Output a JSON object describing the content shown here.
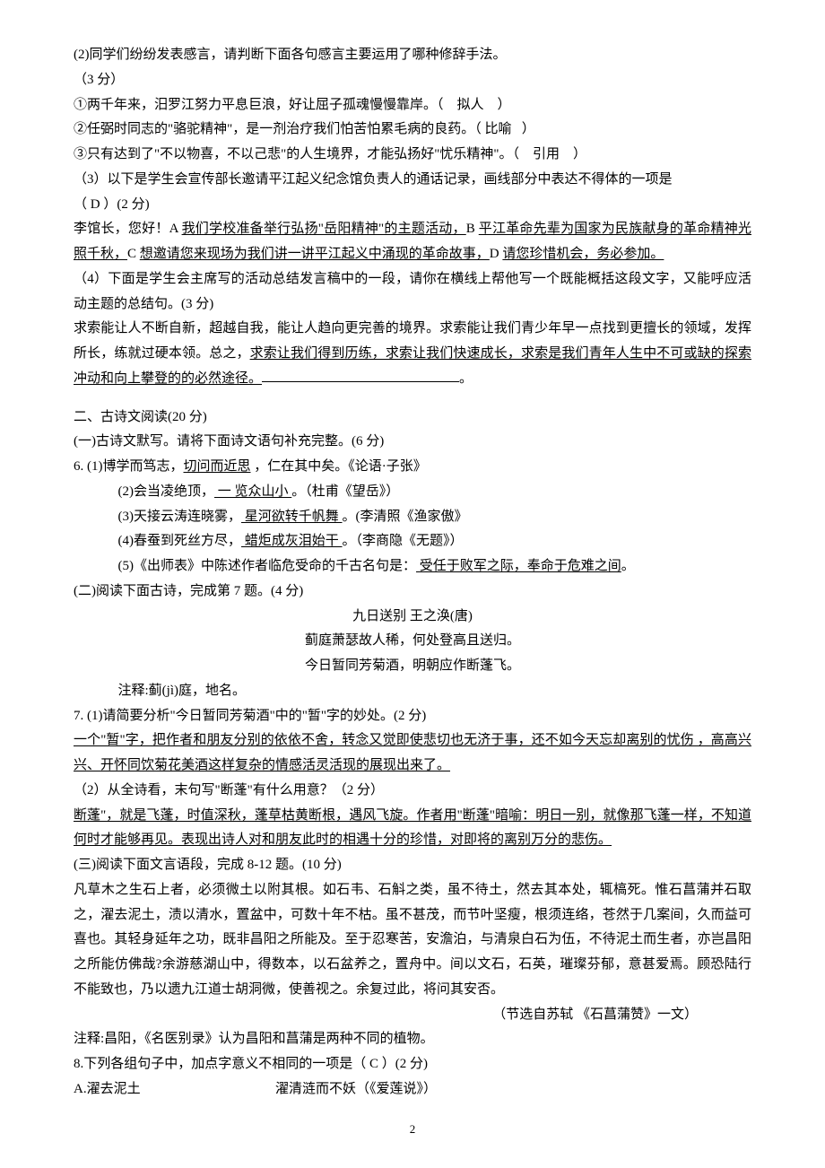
{
  "q2": {
    "line1": "(2)同学们纷纷发表感言，请判断下面各句感言主要运用了哪种修辞手法。",
    "points": "（3 分）",
    "item1_pre": "①两千年来，汨罗江努力平息巨浪，好让屈子孤魂慢慢靠岸。（",
    "item1_ans": "拟人",
    "item1_post": "）",
    "item2_pre": "②任弼时同志的\"骆驼精神\"，是一剂治疗我们怕苦怕累毛病的良药。（",
    "item2_ans": "比喻",
    "item2_post": "）",
    "item3_pre": "③只有达到了\"不以物喜，不以己悲\"的人生境界，才能弘扬好\"忧乐精神\"。（",
    "item3_ans": "引用",
    "item3_post": "）"
  },
  "q3": {
    "stem1": "（3）以下是学生会宣传部长邀请平江起义纪念馆负责人的通话记录，画线部分中表达不得体的一项是",
    "ans": "（  D   ）(2 分)",
    "pre1": "李馆长，您好！A ",
    "seg_a": "我们学校准备举行弘扬\"岳阳精神\"的主题活动，",
    "mid_b": "B ",
    "seg_b": "平江革命先辈为国家为民族献身的革命精神光照千秋，",
    "mid_c": "C ",
    "seg_c": "想邀请您来现场为我们讲一讲平江起义中涌现的革命故事，",
    "mid_d": "D ",
    "seg_d": "请您珍惜机会，务必参加。"
  },
  "q4": {
    "stem": "（4）下面是学生会主席写的活动总结发言稿中的一段，请你在横线上帮他写一个既能概括这段文字，又能呼应活动主题的总结句。(3 分)",
    "body_pre": "求索能让人不断自新，超越自我，能让人趋向更完善的境界。求索能让我们青少年早一点找到更擅长的领域，发挥所长，练就过硬本领。总之，",
    "body_ans": "求索让我们得到历练，求索让我们快速成长，求索是我们青年人生中不可或缺的探索冲动和向上攀登的的必然途径。",
    "body_post": "。"
  },
  "section2": {
    "title": "二、古诗文阅读(20 分)",
    "sub1": "(一)古诗文默写。请将下面诗文语句补充完整。(6 分)"
  },
  "q6": {
    "l1_pre": "6.   (1)博学而笃志，",
    "l1_ans": "切问而近思",
    "l1_post": " ，仁在其中矣。《论语·子张》",
    "l2_pre": "(2)会当凌绝顶，",
    "l2_ans": " 一 览众山小 ",
    "l2_post": "。（杜甫《望岳》）",
    "l3_pre": "(3)天接云涛连晓雾，",
    "l3_ans": " 星河欲转千帆舞  ",
    "l3_post": "。(李清照《渔家傲》",
    "l4_pre": "(4)春蚕到死丝方尽，",
    "l4_ans": " 蜡炬成灰泪始干  ",
    "l4_post": "。（李商隐《无题》）",
    "l5_pre": "(5)《出师表》中陈述作者临危受命的千古名句是：",
    "l5_ans": " 受任于败军之际，奉命于危难之间",
    "l5_post": "。"
  },
  "sub2": "(二)阅读下面古诗，完成第 7 题。(4 分)",
  "poem": {
    "title": "九日送别   王之涣(唐)",
    "l1": "蓟庭萧瑟故人稀，何处登高且送归。",
    "l2": "今日暂同芳菊酒，明朝应作断蓬飞。",
    "note": "注释:蓟(jì)庭，地名。"
  },
  "q7": {
    "p1_stem": "7. (1)请简要分析\"今日暂同芳菊酒\"中的\"暂\"字的妙处。(2 分)",
    "p1_ans": "  一个\"暂\"字，把作者和朋友分别的依依不舍，转念又觉即使悲切也无济于事，还不如今天忘却离别的忧伤 ，高高兴兴、开怀同饮菊花美酒这样复杂的情感活灵活现的展现出来了。  ",
    "p2_stem": "（2）从全诗看，末句写\"断蓬\"有什么用意？（2 分）",
    "p2_before": "   ",
    "p2_ans": "断蓬\"，就是飞蓬，时值深秋，蓬草枯黄断根，遇风飞旋。作者用\"断蓬\"暗喻：明日一别，就像那飞蓬一样，不知道何时才能够再见。表现出诗人对和朋友此时的相遇十分的珍惜，对即将的离别万分的悲伤。"
  },
  "sub3": "(三)阅读下面文言语段，完成 8-12 题。(10 分)",
  "passage": {
    "body": "凡草木之生石上者，必须微土以附其根。如石韦、石斛之类，虽不待土，然去其本处，辄槁死。惟石菖蒲并石取之，濯去泥土，渍以清水，置盆中，可数十年不枯。虽不甚茂，而节叶坚瘦，根须连络，苍然于几案间，久而益可喜也。其轻身延年之功，既非昌阳之所能及。至于忍寒苦，安澹泊，与清泉白石为伍，不待泥土而生者，亦岂昌阳之所能仿佛哉?余游慈湖山中，得数本，以石盆养之，置舟中。间以文石，石英，璀璨芬郁，意甚爱焉。顾恐陆行不能致也，乃以遗九江道士胡洞微，使善视之。余复过此，将问其安否。",
    "src": "（节选自苏轼  《石菖蒲赞》一文）",
    "note": "注释:昌阳，《名医别录》认为昌阳和菖蒲是两种不同的植物。"
  },
  "q8": {
    "stem": "8.下列各组句子中，加点字意义不相同的一项是（ C ）(2 分)",
    "a_left": "A.濯去泥土",
    "a_right": "濯清涟而不妖（《爱莲说》）"
  },
  "page_num": "2"
}
